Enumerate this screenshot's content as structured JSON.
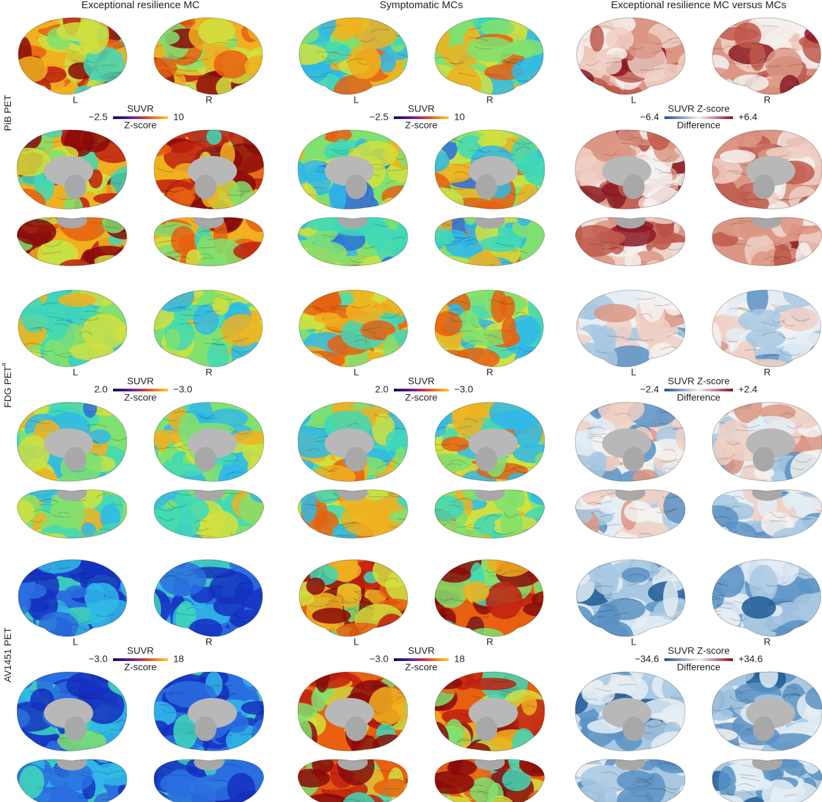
{
  "columns": [
    "Exceptional resilience MC",
    "Symptomatic MCs",
    "Exceptional resilience MC versus MCs"
  ],
  "rows": [
    {
      "label": "PiB PET",
      "panels": [
        {
          "left": "L",
          "right": "R",
          "colorbar": {
            "title": "SUVR",
            "subtitle": "Z-score",
            "min": "−2.5",
            "max": "10"
          }
        },
        {
          "left": "L",
          "right": "R",
          "colorbar": {
            "title": "SUVR",
            "subtitle": "Z-score",
            "min": "−2.5",
            "max": "10"
          }
        },
        {
          "left": "L",
          "right": "R",
          "colorbar": {
            "title": "SUVR Z-score",
            "subtitle": "Difference",
            "min": "−6.4",
            "max": "+6.4"
          }
        }
      ]
    },
    {
      "label": "FDG PET",
      "superscript": "a",
      "panels": [
        {
          "left": "L",
          "right": "R",
          "colorbar": {
            "title": "SUVR",
            "subtitle": "Z-score",
            "min": "2.0",
            "max": "−3.0"
          }
        },
        {
          "left": "L",
          "right": "R",
          "colorbar": {
            "title": "SUVR",
            "subtitle": "Z-score",
            "min": "2.0",
            "max": "−3.0"
          }
        },
        {
          "left": "L",
          "right": "R",
          "colorbar": {
            "title": "SUVR Z-score",
            "subtitle": "Difference",
            "min": "−2.4",
            "max": "+2.4"
          }
        }
      ]
    },
    {
      "label": "AV1451 PET",
      "panels": [
        {
          "left": "L",
          "right": "R",
          "colorbar": {
            "title": "SUVR",
            "subtitle": "Z-score",
            "min": "−3.0",
            "max": "18"
          }
        },
        {
          "left": "L",
          "right": "R",
          "colorbar": {
            "title": "SUVR",
            "subtitle": "Z-score",
            "min": "−3.0",
            "max": "18"
          }
        },
        {
          "left": "L",
          "right": "R",
          "colorbar": {
            "title": "SUVR Z-score",
            "subtitle": "Difference",
            "min": "−34.6",
            "max": "+34.6"
          }
        }
      ]
    }
  ]
}
